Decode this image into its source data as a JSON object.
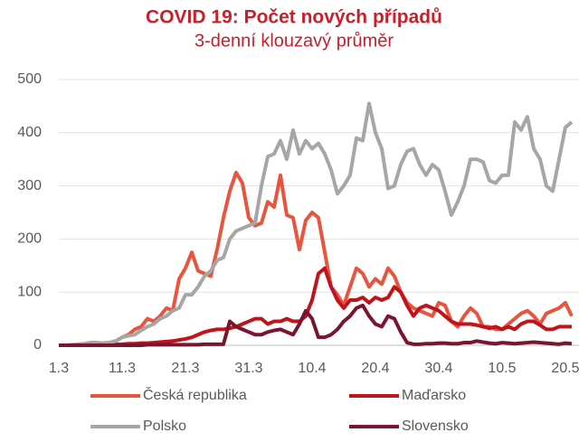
{
  "chart_data": {
    "type": "line",
    "title": "COVID 19: Počet nových případů",
    "subtitle": "3-denní klouzavý průměr",
    "categories": [
      "1.3",
      null,
      null,
      null,
      null,
      null,
      null,
      null,
      null,
      null,
      "11.3",
      null,
      null,
      null,
      null,
      null,
      null,
      null,
      null,
      null,
      "21.3",
      null,
      null,
      null,
      null,
      null,
      null,
      null,
      null,
      null,
      "31.3",
      null,
      null,
      null,
      null,
      null,
      null,
      null,
      null,
      null,
      "10.4",
      null,
      null,
      null,
      null,
      null,
      null,
      null,
      null,
      null,
      "20.4",
      null,
      null,
      null,
      null,
      null,
      null,
      null,
      null,
      null,
      "30.4",
      null,
      null,
      null,
      null,
      null,
      null,
      null,
      null,
      null,
      "10.5",
      null,
      null,
      null,
      null,
      null,
      null,
      null,
      null,
      null,
      "20.5",
      null
    ],
    "series": [
      {
        "name": "Česká republika",
        "color": "#e8553f",
        "values": [
          0,
          0,
          0,
          1,
          2,
          3,
          3,
          4,
          5,
          8,
          15,
          20,
          30,
          35,
          50,
          45,
          55,
          70,
          65,
          125,
          145,
          175,
          140,
          135,
          130,
          180,
          240,
          290,
          325,
          305,
          240,
          225,
          230,
          270,
          260,
          320,
          245,
          240,
          180,
          235,
          250,
          240,
          175,
          110,
          95,
          75,
          110,
          145,
          135,
          110,
          125,
          115,
          145,
          130,
          100,
          80,
          70,
          65,
          60,
          55,
          80,
          75,
          45,
          35,
          55,
          70,
          60,
          35,
          35,
          30,
          30,
          40,
          50,
          60,
          65,
          55,
          40,
          60,
          65,
          70,
          80,
          55
        ]
      },
      {
        "name": "Maďarsko",
        "color": "#c0141c",
        "values": [
          0,
          0,
          0,
          0,
          0,
          0,
          1,
          1,
          1,
          2,
          2,
          3,
          3,
          4,
          4,
          5,
          6,
          7,
          8,
          10,
          12,
          15,
          20,
          25,
          28,
          30,
          30,
          32,
          35,
          40,
          45,
          50,
          50,
          40,
          45,
          45,
          50,
          45,
          45,
          55,
          85,
          135,
          145,
          110,
          85,
          70,
          85,
          85,
          90,
          80,
          90,
          85,
          90,
          110,
          100,
          75,
          55,
          70,
          75,
          70,
          65,
          55,
          45,
          40,
          40,
          40,
          38,
          35,
          32,
          35,
          30,
          35,
          30,
          40,
          45,
          45,
          38,
          30,
          30,
          35,
          35,
          35
        ]
      },
      {
        "name": "Polsko",
        "color": "#a6a6a6",
        "values": [
          0,
          0,
          1,
          2,
          3,
          5,
          5,
          4,
          5,
          8,
          15,
          18,
          20,
          28,
          35,
          40,
          50,
          55,
          65,
          70,
          95,
          95,
          110,
          130,
          140,
          160,
          165,
          200,
          215,
          220,
          225,
          230,
          300,
          355,
          360,
          385,
          350,
          405,
          360,
          385,
          370,
          380,
          360,
          330,
          285,
          300,
          320,
          390,
          385,
          455,
          400,
          370,
          295,
          300,
          340,
          365,
          370,
          340,
          320,
          340,
          330,
          290,
          245,
          270,
          300,
          350,
          350,
          345,
          310,
          305,
          320,
          320,
          420,
          405,
          430,
          370,
          350,
          300,
          290,
          350,
          410,
          420
        ]
      },
      {
        "name": "Slovensko",
        "color": "#7a1530",
        "values": [
          0,
          0,
          0,
          0,
          0,
          0,
          0,
          0,
          0,
          0,
          0,
          0,
          0,
          0,
          1,
          1,
          1,
          1,
          1,
          1,
          1,
          1,
          1,
          2,
          2,
          2,
          2,
          45,
          35,
          30,
          25,
          20,
          20,
          25,
          28,
          30,
          25,
          20,
          40,
          65,
          50,
          15,
          15,
          20,
          30,
          45,
          55,
          70,
          75,
          55,
          40,
          35,
          55,
          50,
          25,
          5,
          2,
          2,
          3,
          3,
          4,
          4,
          3,
          3,
          5,
          5,
          8,
          6,
          4,
          3,
          5,
          4,
          3,
          4,
          5,
          6,
          5,
          4,
          3,
          2,
          4,
          3
        ]
      }
    ],
    "ylim": [
      0,
      500
    ],
    "yticks": [
      0,
      100,
      200,
      300,
      400,
      500
    ],
    "grid": true
  }
}
